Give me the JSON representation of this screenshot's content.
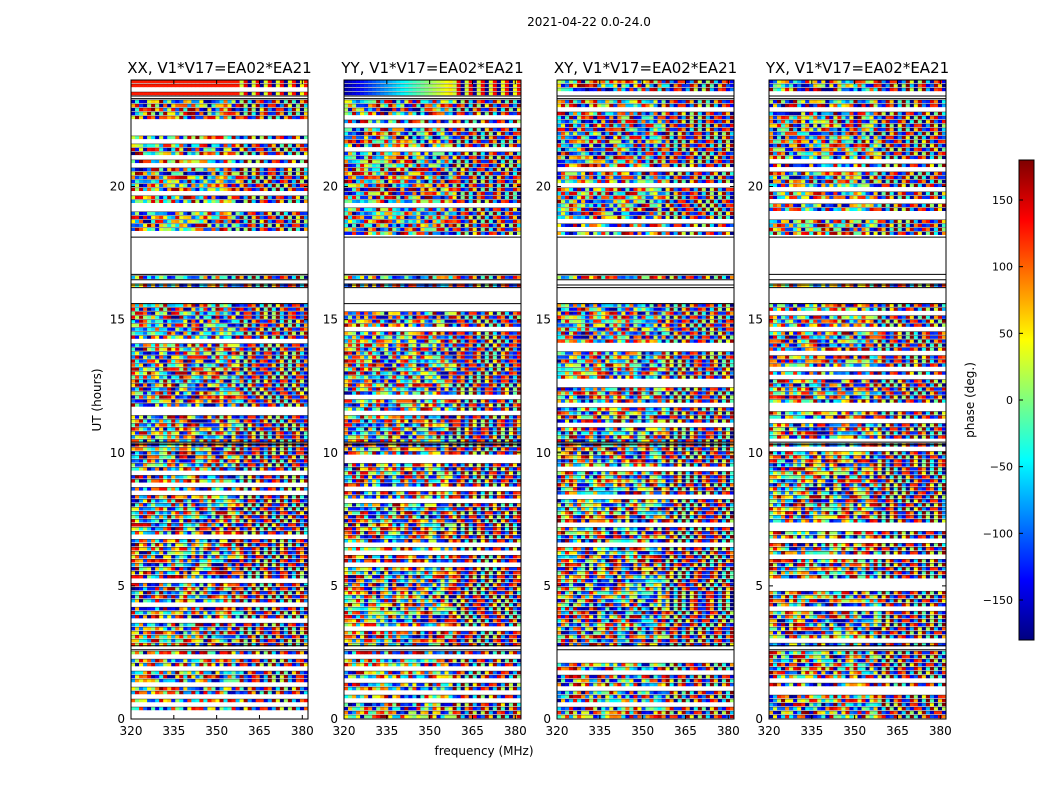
{
  "figure": {
    "suptitle": "2021-04-22 0.0-24.0",
    "xlabel": "frequency (MHz)",
    "ylabel": "UT (hours)"
  },
  "colorbar": {
    "label": "phase (deg.)",
    "min": -180,
    "max": 180,
    "ticks": [
      150,
      100,
      50,
      0,
      -50,
      -100,
      -150
    ],
    "tick_labels": [
      "150",
      "100",
      "50",
      "0",
      "−50",
      "−100",
      "−150"
    ],
    "colormap": [
      "#00007f",
      "#0000ff",
      "#007fff",
      "#00ffff",
      "#7fff7f",
      "#ffff00",
      "#ff7f00",
      "#ff0000",
      "#7f0000"
    ]
  },
  "chart_data": {
    "type": "heatmap",
    "description": "Per-baseline phase waterfall (time vs frequency) for four polarization products",
    "x": {
      "label": "frequency (MHz)",
      "range": [
        320,
        382
      ],
      "ticks": [
        320,
        335,
        350,
        365,
        380
      ],
      "tick_labels": [
        "320",
        "335",
        "350",
        "365",
        "380"
      ]
    },
    "y": {
      "label": "UT (hours)",
      "range": [
        0,
        24
      ],
      "ticks": [
        0,
        5,
        10,
        15,
        20
      ],
      "tick_labels": [
        "0",
        "5",
        "10",
        "15",
        "20"
      ]
    },
    "z": {
      "label": "phase (deg.)",
      "range": [
        -180,
        180
      ]
    },
    "panels": [
      {
        "title": "XX, V1*V17=EA02*EA21",
        "pol": "XX"
      },
      {
        "title": "YY, V1*V17=EA02*EA21",
        "pol": "YY"
      },
      {
        "title": "XY, V1*V17=EA02*EA21",
        "pol": "XY"
      },
      {
        "title": "YX, V1*V17=EA02*EA21",
        "pol": "YX"
      }
    ],
    "data_gaps_ut_hours": [
      [
        2.6,
        2.75
      ],
      [
        16.3,
        16.5
      ],
      [
        15.6,
        16.2
      ],
      [
        16.7,
        18.1
      ],
      [
        23.3,
        23.4
      ],
      [
        10.3,
        10.4
      ]
    ]
  }
}
